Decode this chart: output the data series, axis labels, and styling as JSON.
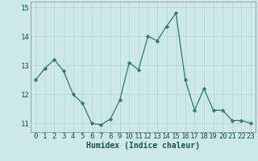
{
  "x": [
    0,
    1,
    2,
    3,
    4,
    5,
    6,
    7,
    8,
    9,
    10,
    11,
    12,
    13,
    14,
    15,
    16,
    17,
    18,
    19,
    20,
    21,
    22,
    23
  ],
  "y": [
    12.5,
    12.9,
    13.2,
    12.8,
    12.0,
    11.7,
    11.0,
    10.95,
    11.15,
    11.8,
    13.1,
    12.85,
    14.0,
    13.85,
    14.35,
    14.8,
    12.5,
    11.45,
    12.2,
    11.45,
    11.45,
    11.1,
    11.1,
    11.0
  ],
  "xlabel": "Humidex (Indice chaleur)",
  "ylim": [
    10.7,
    15.2
  ],
  "yticks": [
    11,
    12,
    13,
    14,
    15
  ],
  "xticks": [
    0,
    1,
    2,
    3,
    4,
    5,
    6,
    7,
    8,
    9,
    10,
    11,
    12,
    13,
    14,
    15,
    16,
    17,
    18,
    19,
    20,
    21,
    22,
    23
  ],
  "line_color": "#2e7d6e",
  "marker_color": "#2e7d6e",
  "bg_color": "#cce8e8",
  "grid_color": "#b8d8d8",
  "axis_label_fontsize": 7,
  "tick_fontsize": 6.5
}
